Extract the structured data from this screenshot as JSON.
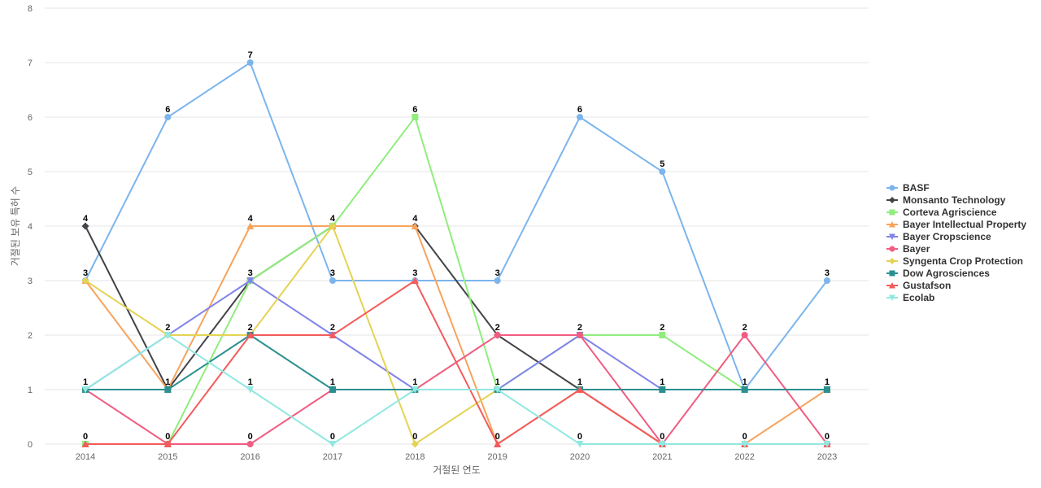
{
  "chart_data": {
    "type": "line",
    "xlabel": "거절된 연도",
    "ylabel": "거절된 보유 특허 수",
    "ylim": [
      0,
      8
    ],
    "y_ticks": [
      0,
      1,
      2,
      3,
      4,
      5,
      6,
      7,
      8
    ],
    "categories": [
      "2014",
      "2015",
      "2016",
      "2017",
      "2018",
      "2019",
      "2020",
      "2021",
      "2022",
      "2023"
    ],
    "grid": true,
    "legend_position": "right",
    "data_labels": [
      {
        "label": "3",
        "x": "2014",
        "y": 3
      },
      {
        "label": "4",
        "x": "2014",
        "y": 4
      },
      {
        "label": "1",
        "x": "2014",
        "y": 1
      },
      {
        "label": "0",
        "x": "2014",
        "y": 0
      },
      {
        "label": "6",
        "x": "2015",
        "y": 6
      },
      {
        "label": "2",
        "x": "2015",
        "y": 2
      },
      {
        "label": "1",
        "x": "2015",
        "y": 1
      },
      {
        "label": "0",
        "x": "2015",
        "y": 0
      },
      {
        "label": "7",
        "x": "2016",
        "y": 7
      },
      {
        "label": "4",
        "x": "2016",
        "y": 4
      },
      {
        "label": "3",
        "x": "2016",
        "y": 3
      },
      {
        "label": "2",
        "x": "2016",
        "y": 2
      },
      {
        "label": "1",
        "x": "2016",
        "y": 1
      },
      {
        "label": "0",
        "x": "2016",
        "y": 0
      },
      {
        "label": "4",
        "x": "2017",
        "y": 4
      },
      {
        "label": "3",
        "x": "2017",
        "y": 3
      },
      {
        "label": "2",
        "x": "2017",
        "y": 2
      },
      {
        "label": "1",
        "x": "2017",
        "y": 1
      },
      {
        "label": "0",
        "x": "2017",
        "y": 0
      },
      {
        "label": "6",
        "x": "2018",
        "y": 6
      },
      {
        "label": "4",
        "x": "2018",
        "y": 4
      },
      {
        "label": "3",
        "x": "2018",
        "y": 3
      },
      {
        "label": "1",
        "x": "2018",
        "y": 1
      },
      {
        "label": "0",
        "x": "2018",
        "y": 0
      },
      {
        "label": "3",
        "x": "2019",
        "y": 3
      },
      {
        "label": "2",
        "x": "2019",
        "y": 2
      },
      {
        "label": "1",
        "x": "2019",
        "y": 1
      },
      {
        "label": "0",
        "x": "2019",
        "y": 0
      },
      {
        "label": "6",
        "x": "2020",
        "y": 6
      },
      {
        "label": "2",
        "x": "2020",
        "y": 2
      },
      {
        "label": "1",
        "x": "2020",
        "y": 1
      },
      {
        "label": "0",
        "x": "2020",
        "y": 0
      },
      {
        "label": "5",
        "x": "2021",
        "y": 5
      },
      {
        "label": "2",
        "x": "2021",
        "y": 2
      },
      {
        "label": "1",
        "x": "2021",
        "y": 1
      },
      {
        "label": "0",
        "x": "2021",
        "y": 0
      },
      {
        "label": "2",
        "x": "2022",
        "y": 2
      },
      {
        "label": "1",
        "x": "2022",
        "y": 1
      },
      {
        "label": "0",
        "x": "2022",
        "y": 0
      },
      {
        "label": "3",
        "x": "2023",
        "y": 3
      },
      {
        "label": "1",
        "x": "2023",
        "y": 1
      },
      {
        "label": "0",
        "x": "2023",
        "y": 0
      }
    ],
    "series": [
      {
        "name": "BASF",
        "color": "#7cb5ec",
        "marker": "circle",
        "values": [
          3,
          6,
          7,
          3,
          3,
          3,
          6,
          5,
          1,
          3
        ]
      },
      {
        "name": "Monsanto Technology",
        "color": "#434348",
        "marker": "diamond",
        "values": [
          4,
          1,
          3,
          4,
          4,
          2,
          1,
          0,
          0,
          0
        ]
      },
      {
        "name": "Corteva Agriscience",
        "color": "#90ed7d",
        "marker": "square",
        "values": [
          0,
          0,
          3,
          4,
          6,
          1,
          2,
          2,
          1,
          1
        ]
      },
      {
        "name": "Bayer Intellectual Property",
        "color": "#f7a35c",
        "marker": "triangle",
        "values": [
          3,
          1,
          4,
          4,
          4,
          0,
          1,
          0,
          0,
          1
        ]
      },
      {
        "name": "Bayer Cropscience",
        "color": "#8085e9",
        "marker": "triangle-down",
        "values": [
          1,
          2,
          3,
          2,
          1,
          1,
          2,
          1,
          1,
          1
        ]
      },
      {
        "name": "Bayer",
        "color": "#f15c80",
        "marker": "circle",
        "values": [
          1,
          0,
          0,
          1,
          1,
          2,
          2,
          0,
          2,
          0
        ]
      },
      {
        "name": "Syngenta Crop Protection",
        "color": "#e4d354",
        "marker": "diamond",
        "values": [
          3,
          2,
          2,
          4,
          0,
          1,
          1,
          1,
          1,
          1
        ]
      },
      {
        "name": "Dow Agrosciences",
        "color": "#2b908f",
        "marker": "square",
        "values": [
          1,
          1,
          2,
          1,
          1,
          1,
          1,
          1,
          1,
          1
        ]
      },
      {
        "name": "Gustafson",
        "color": "#f45b5b",
        "marker": "triangle",
        "values": [
          0,
          0,
          2,
          2,
          3,
          0,
          1,
          0,
          0,
          0
        ]
      },
      {
        "name": "Ecolab",
        "color": "#91e8e1",
        "marker": "triangle-down",
        "values": [
          1,
          2,
          1,
          0,
          1,
          1,
          0,
          0,
          0,
          0
        ]
      }
    ]
  }
}
